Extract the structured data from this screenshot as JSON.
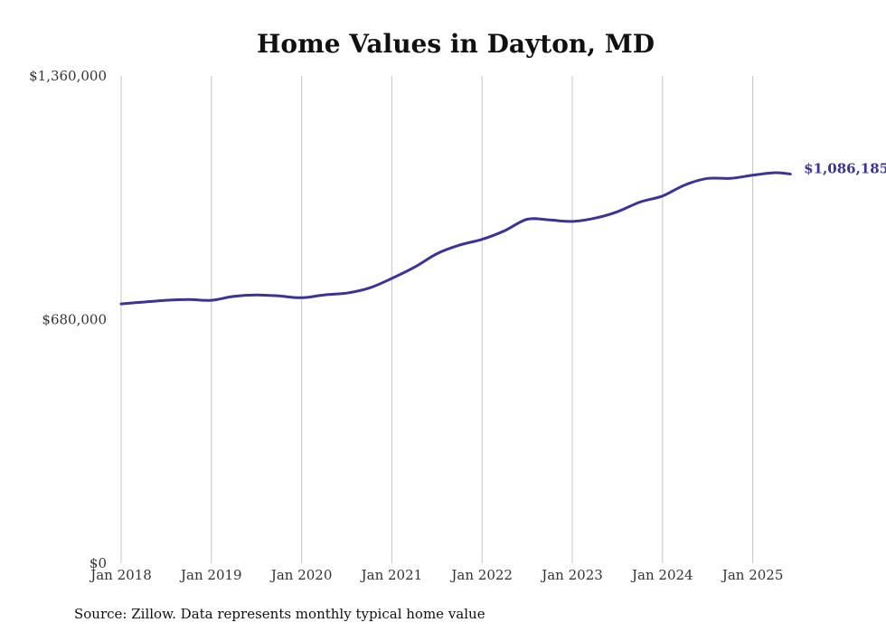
{
  "chart_data": {
    "type": "line",
    "title": "Home Values in Dayton, MD",
    "source": "Source: Zillow. Data represents monthly typical home value",
    "ylim": [
      0,
      1360000
    ],
    "y_ticks": [
      {
        "value": 1360000,
        "label": "$1,360,000"
      },
      {
        "value": 680000,
        "label": "$680,000"
      },
      {
        "value": 0,
        "label": "$0"
      }
    ],
    "x_ticks": [
      "Jan 2018",
      "Jan 2019",
      "Jan 2020",
      "Jan 2021",
      "Jan 2022",
      "Jan 2023",
      "Jan 2024",
      "Jan 2025"
    ],
    "grid": {
      "vertical": true,
      "horizontal": false
    },
    "line_color": "#3b3494",
    "end_label": "$1,086,185",
    "series": [
      {
        "x": [
          "2018-01",
          "2018-04",
          "2018-07",
          "2018-10",
          "2019-01",
          "2019-04",
          "2019-07",
          "2019-10",
          "2020-01",
          "2020-04",
          "2020-07",
          "2020-10",
          "2021-01",
          "2021-04",
          "2021-07",
          "2021-10",
          "2022-01",
          "2022-04",
          "2022-07",
          "2022-10",
          "2023-01",
          "2023-04",
          "2023-07",
          "2023-10",
          "2024-01",
          "2024-04",
          "2024-07",
          "2024-10",
          "2025-01",
          "2025-04",
          "2025-06"
        ],
        "values": [
          724000,
          729000,
          734000,
          736000,
          734000,
          745000,
          749000,
          746000,
          741000,
          749000,
          754000,
          768000,
          795000,
          826000,
          864000,
          888000,
          904000,
          928000,
          960000,
          958000,
          954000,
          963000,
          981000,
          1008000,
          1025000,
          1056000,
          1074000,
          1074000,
          1083000,
          1090000,
          1086185
        ]
      }
    ]
  }
}
